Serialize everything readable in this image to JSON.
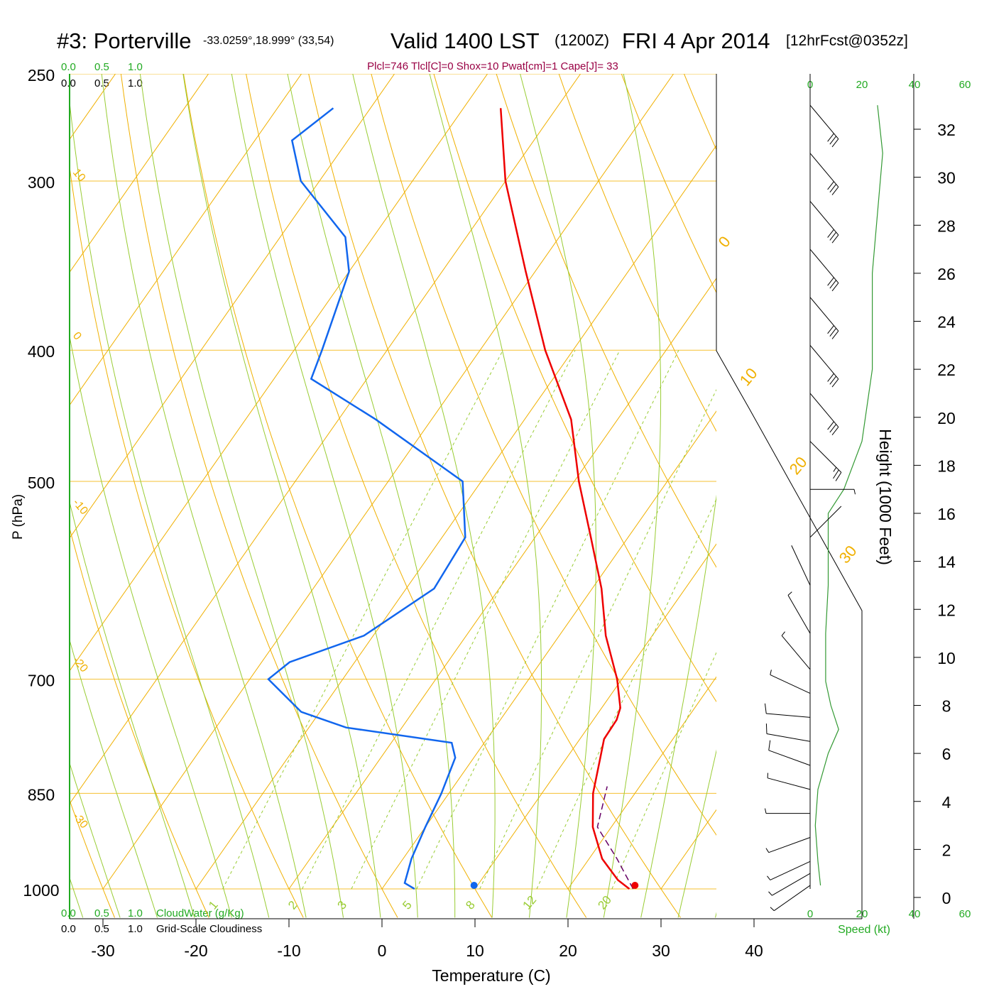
{
  "chart_data": {
    "type": "line",
    "title": {
      "station": "#3: Porterville",
      "coords": "-33.0259°,18.999° (33,54)",
      "valid": "Valid 1400 LST",
      "zulu": "(1200Z)",
      "date": "FRI 4 Apr 2014",
      "forecast": "[12hrFcst@0352z]"
    },
    "indices": "Plcl=746 Tlcl[C]=0 Shox=10 Pwat[cm]=1 Cape[J]= 33",
    "xlabel": "Temperature (C)",
    "ylabel": "P (hPa)",
    "height_label": "Height (1000 Feet)",
    "x_ticks": [
      -30,
      -20,
      -10,
      0,
      10,
      20,
      30,
      40
    ],
    "p_ticks": [
      250,
      300,
      400,
      500,
      700,
      850,
      1000
    ],
    "height_ticks": [
      0,
      2,
      4,
      6,
      8,
      10,
      12,
      14,
      16,
      18,
      20,
      22,
      24,
      26,
      28,
      30,
      32
    ],
    "speed_ticks": [
      "0",
      "20",
      "40",
      "60"
    ],
    "speed_label": "Speed (kt)",
    "cloudwater_ticks": [
      "0.0",
      "0.5",
      "1.0"
    ],
    "cloudwater_label": "CloudWater (g/Kg)",
    "cloudiness_ticks": [
      "0.0",
      "0.5",
      "1.0"
    ],
    "cloudiness_label": "Grid-Scale Cloudiness",
    "dry_adiabat_labels": [
      "10",
      "0",
      "-10",
      "-20",
      "-30"
    ],
    "isotherm_labels": [
      "0",
      "10",
      "20",
      "30"
    ],
    "mixing_ratio_labels": [
      "1",
      "2",
      "3",
      "5",
      "8",
      "12",
      "20"
    ],
    "colors": {
      "temperature": "#ee0000",
      "dewpoint": "#1166ee",
      "parcel": "#660066",
      "isotherm": "#f0b000",
      "moist_adiabat": "#99cc33",
      "grid": "#f5c030",
      "green_text": "#22aa22",
      "indices_text": "#990044"
    },
    "temperature_profile": [
      {
        "p": 1000,
        "t": 26.6
      },
      {
        "p": 985,
        "t": 24.7
      },
      {
        "p": 950,
        "t": 21.4
      },
      {
        "p": 900,
        "t": 18.0
      },
      {
        "p": 850,
        "t": 15.5
      },
      {
        "p": 800,
        "t": 13.6
      },
      {
        "p": 775,
        "t": 12.6
      },
      {
        "p": 750,
        "t": 12.5
      },
      {
        "p": 735,
        "t": 12.0
      },
      {
        "p": 700,
        "t": 9.5
      },
      {
        "p": 650,
        "t": 5.0
      },
      {
        "p": 600,
        "t": 1.0
      },
      {
        "p": 550,
        "t": -4.0
      },
      {
        "p": 500,
        "t": -9.5
      },
      {
        "p": 450,
        "t": -15.0
      },
      {
        "p": 400,
        "t": -23.0
      },
      {
        "p": 350,
        "t": -31.0
      },
      {
        "p": 300,
        "t": -40.0
      },
      {
        "p": 265,
        "t": -46.0
      }
    ],
    "dewpoint_profile": [
      {
        "p": 1000,
        "t": 3.5
      },
      {
        "p": 990,
        "t": 2.0
      },
      {
        "p": 950,
        "t": 0.9
      },
      {
        "p": 900,
        "t": 0.0
      },
      {
        "p": 850,
        "t": -0.8
      },
      {
        "p": 800,
        "t": -2.0
      },
      {
        "p": 780,
        "t": -3.5
      },
      {
        "p": 760,
        "t": -16.0
      },
      {
        "p": 740,
        "t": -22.0
      },
      {
        "p": 700,
        "t": -28.0
      },
      {
        "p": 680,
        "t": -27.0
      },
      {
        "p": 650,
        "t": -21.0
      },
      {
        "p": 600,
        "t": -17.0
      },
      {
        "p": 550,
        "t": -17.5
      },
      {
        "p": 500,
        "t": -22.0
      },
      {
        "p": 450,
        "t": -36.0
      },
      {
        "p": 420,
        "t": -46.0
      },
      {
        "p": 400,
        "t": -47.0
      },
      {
        "p": 350,
        "t": -50.0
      },
      {
        "p": 330,
        "t": -53.0
      },
      {
        "p": 300,
        "t": -62.0
      },
      {
        "p": 280,
        "t": -66.0
      },
      {
        "p": 265,
        "t": -64.0
      }
    ],
    "parcel_profile": [
      {
        "p": 1000,
        "t": 27.0
      },
      {
        "p": 950,
        "t": 23.0
      },
      {
        "p": 900,
        "t": 18.5
      },
      {
        "p": 840,
        "t": 16.5
      }
    ],
    "surface_temperature": 27.2,
    "surface_dewpoint": 9.9,
    "wind_barbs": [
      {
        "h": 0.5,
        "dir": 235,
        "spd": 5
      },
      {
        "h": 1.0,
        "dir": 240,
        "spd": 6
      },
      {
        "h": 1.5,
        "dir": 245,
        "spd": 7
      },
      {
        "h": 2.5,
        "dir": 250,
        "spd": 6
      },
      {
        "h": 3.5,
        "dir": 270,
        "spd": 5
      },
      {
        "h": 4.5,
        "dir": 285,
        "spd": 8
      },
      {
        "h": 5.5,
        "dir": 290,
        "spd": 10
      },
      {
        "h": 6.5,
        "dir": 280,
        "spd": 12
      },
      {
        "h": 7.5,
        "dir": 275,
        "spd": 10
      },
      {
        "h": 8.5,
        "dir": 295,
        "spd": 9
      },
      {
        "h": 9.5,
        "dir": 320,
        "spd": 7
      },
      {
        "h": 11.0,
        "dir": 330,
        "spd": 6
      },
      {
        "h": 13.0,
        "dir": 335,
        "spd": 4
      },
      {
        "h": 15.0,
        "dir": 45,
        "spd": 3
      },
      {
        "h": 17.0,
        "dir": 90,
        "spd": 7
      },
      {
        "h": 19.0,
        "dir": 135,
        "spd": 25
      },
      {
        "h": 21.0,
        "dir": 140,
        "spd": 30
      },
      {
        "h": 23.0,
        "dir": 140,
        "spd": 30
      },
      {
        "h": 25.0,
        "dir": 140,
        "spd": 30
      },
      {
        "h": 27.0,
        "dir": 140,
        "spd": 30
      },
      {
        "h": 29.0,
        "dir": 140,
        "spd": 30
      },
      {
        "h": 31.0,
        "dir": 140,
        "spd": 30
      },
      {
        "h": 33.0,
        "dir": 140,
        "spd": 30
      }
    ],
    "wind_speed_profile": [
      {
        "h": 0.5,
        "spd": 4
      },
      {
        "h": 1.5,
        "spd": 3
      },
      {
        "h": 3.0,
        "spd": 2
      },
      {
        "h": 4.5,
        "spd": 3
      },
      {
        "h": 6.0,
        "spd": 7
      },
      {
        "h": 7.0,
        "spd": 11
      },
      {
        "h": 8.0,
        "spd": 8
      },
      {
        "h": 9.0,
        "spd": 6
      },
      {
        "h": 11.0,
        "spd": 6
      },
      {
        "h": 13.0,
        "spd": 7
      },
      {
        "h": 16.0,
        "spd": 7
      },
      {
        "h": 17.0,
        "spd": 13
      },
      {
        "h": 19.0,
        "spd": 20
      },
      {
        "h": 22.0,
        "spd": 24
      },
      {
        "h": 26.0,
        "spd": 24
      },
      {
        "h": 31.0,
        "spd": 28
      },
      {
        "h": 33.0,
        "spd": 26
      }
    ]
  }
}
